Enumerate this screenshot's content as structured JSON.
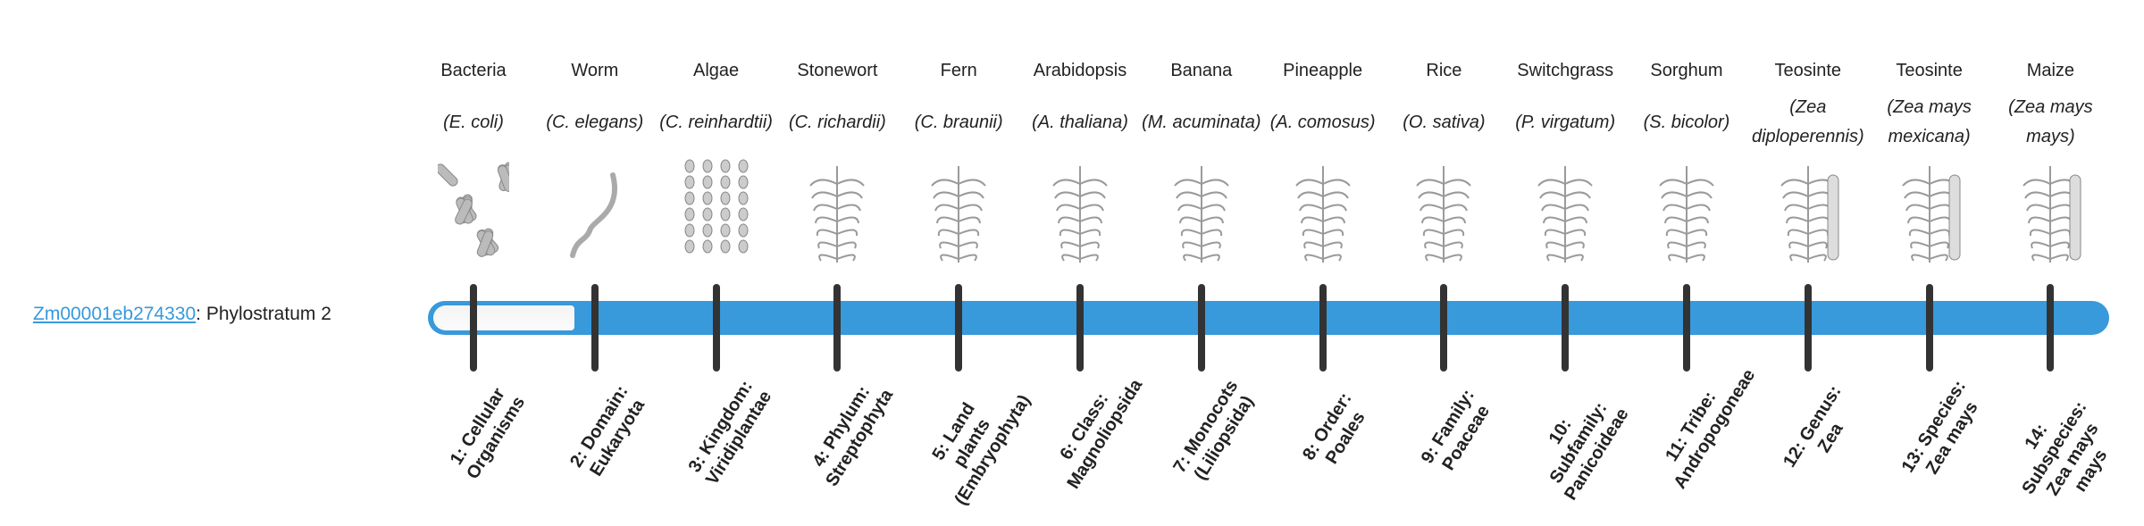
{
  "gene": {
    "id": "Zm00001eb274330",
    "suffix": ": Phylostratum 2",
    "phylostratum": 2,
    "total_strata": 14
  },
  "colors": {
    "bar": "#3899db",
    "tick": "#333333",
    "link": "#3899db",
    "fill": "#f6f6f6"
  },
  "columns": [
    {
      "common": "Bacteria",
      "scientific": "(E. coli)",
      "icon": "bacteria-illustration",
      "stratum": "1: Cellular Organisms"
    },
    {
      "common": "Worm",
      "scientific": "(C. elegans)",
      "icon": "worm-illustration",
      "stratum": "2: Domain: Eukaryota"
    },
    {
      "common": "Algae",
      "scientific": "(C. reinhardtii)",
      "icon": "algae-illustration",
      "stratum": "3: Kingdom: Viridiplantae"
    },
    {
      "common": "Stonewort",
      "scientific": "(C. richardii)",
      "icon": "stonewort-illustration",
      "stratum": "4: Phylum: Streptophyta"
    },
    {
      "common": "Fern",
      "scientific": "(C. braunii)",
      "icon": "fern-illustration",
      "stratum": "5: Land plants (Embryophyta)"
    },
    {
      "common": "Arabidopsis",
      "scientific": "(A. thaliana)",
      "icon": "arabidopsis-illustration",
      "stratum": "6: Class: Magnoliopsida"
    },
    {
      "common": "Banana",
      "scientific": "(M. acuminata)",
      "icon": "banana-illustration",
      "stratum": "7: Monocots (Liliopsida)"
    },
    {
      "common": "Pineapple",
      "scientific": "(A. comosus)",
      "icon": "pineapple-illustration",
      "stratum": "8: Order: Poales"
    },
    {
      "common": "Rice",
      "scientific": "(O. sativa)",
      "icon": "rice-illustration",
      "stratum": "9: Family: Poaceae"
    },
    {
      "common": "Switchgrass",
      "scientific": "(P. virgatum)",
      "icon": "switchgrass-illustration",
      "stratum": "10: Subfamily: Panicoideae"
    },
    {
      "common": "Sorghum",
      "scientific": "(S. bicolor)",
      "icon": "sorghum-illustration",
      "stratum": "11: Tribe: Andropogoneae"
    },
    {
      "common": "Teosinte",
      "scientific": "(Zea diploperennis)",
      "icon": "teosinte-illustration",
      "stratum": "12: Genus: Zea"
    },
    {
      "common": "Teosinte",
      "scientific": "(Zea mays mexicana)",
      "icon": "teosinte-mexicana-illustration",
      "stratum": "13: Species: Zea mays"
    },
    {
      "common": "Maize",
      "scientific": "(Zea mays mays)",
      "icon": "maize-illustration",
      "stratum": "14: Subspecies: Zea mays mays"
    }
  ]
}
